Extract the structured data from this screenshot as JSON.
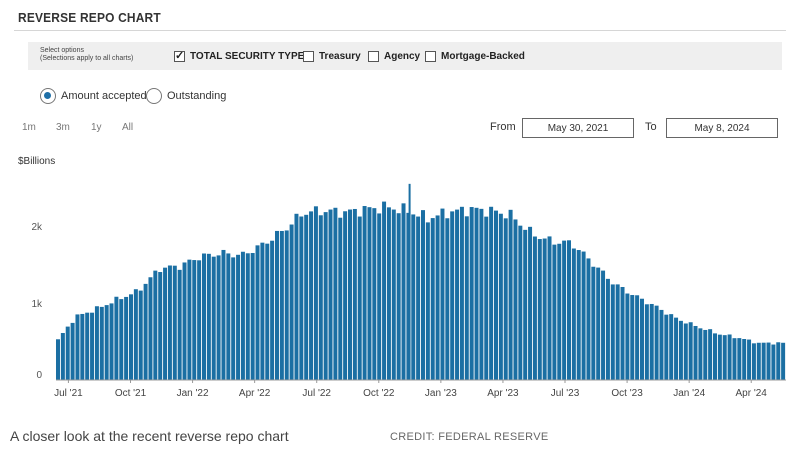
{
  "header": {
    "title": "REVERSE REPO CHART"
  },
  "options": {
    "label_line1": "Select options",
    "label_line2": "(Selections apply to all charts)",
    "checkboxes": [
      {
        "label": "TOTAL SECURITY TYPES",
        "checked": true
      },
      {
        "label": "Treasury",
        "checked": false
      },
      {
        "label": "Agency",
        "checked": false
      },
      {
        "label": "Mortgage-Backed",
        "checked": false
      }
    ]
  },
  "radios": [
    {
      "label": "Amount accepted",
      "selected": true
    },
    {
      "label": "Outstanding",
      "selected": false
    }
  ],
  "ranges": [
    "1m",
    "3m",
    "1y",
    "All"
  ],
  "dates": {
    "from_label": "From",
    "from_value": "May 30, 2021",
    "to_label": "To",
    "to_value": "May 8, 2024"
  },
  "chart_data": {
    "type": "bar",
    "ylabel": "$Billions",
    "ylim": [
      0,
      2600
    ],
    "yticks": [
      {
        "value": 0,
        "label": "0"
      },
      {
        "value": 1000,
        "label": "1k"
      },
      {
        "value": 2000,
        "label": "2k"
      }
    ],
    "xticks": [
      {
        "pos": 0.05,
        "label": "Jul '21"
      },
      {
        "pos": 0.3,
        "label": "Oct '21"
      },
      {
        "pos": 0.55,
        "label": "Jan '22"
      },
      {
        "pos": 0.8,
        "label": "Apr '22"
      },
      {
        "pos": 1.05,
        "label": "Jul '22"
      },
      {
        "pos": 1.3,
        "label": "Oct '22"
      },
      {
        "pos": 1.55,
        "label": "Jan '23"
      },
      {
        "pos": 1.8,
        "label": "Apr '23"
      },
      {
        "pos": 2.05,
        "label": "Jul '23"
      },
      {
        "pos": 2.3,
        "label": "Oct '23"
      },
      {
        "pos": 2.55,
        "label": "Jan '24"
      },
      {
        "pos": 2.8,
        "label": "Apr '24"
      }
    ],
    "x_years_since_start": [
      0,
      0.08,
      0.17,
      0.25,
      0.33,
      0.42,
      0.5,
      0.58,
      0.67,
      0.75,
      0.83,
      0.92,
      1.0,
      1.08,
      1.17,
      1.25,
      1.33,
      1.42,
      1.5,
      1.58,
      1.67,
      1.75,
      1.83,
      1.92,
      2.0,
      2.08,
      2.17,
      2.25,
      2.33,
      2.42,
      2.5,
      2.58,
      2.67,
      2.75,
      2.83,
      2.94
    ],
    "values": [
      480,
      820,
      930,
      1050,
      1150,
      1450,
      1480,
      1600,
      1650,
      1620,
      1750,
      1950,
      2180,
      2200,
      2180,
      2220,
      2250,
      2200,
      2100,
      2180,
      2220,
      2200,
      2150,
      1900,
      1800,
      1780,
      1500,
      1250,
      1100,
      950,
      800,
      700,
      600,
      550,
      480,
      480
    ],
    "spikes": [
      {
        "x": 1.42,
        "value": 2550
      }
    ],
    "bar_color": "#1b6fa3"
  },
  "caption": "A closer look at the recent reverse repo chart",
  "credit": "CREDIT: FEDERAL RESERVE"
}
